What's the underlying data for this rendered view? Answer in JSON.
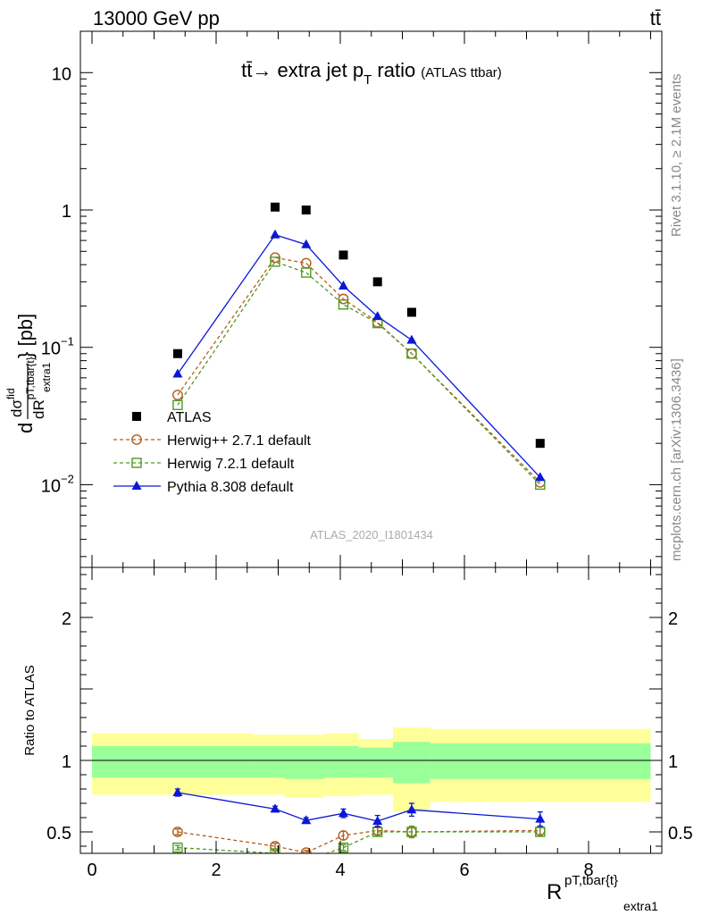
{
  "header": {
    "left": "13000 GeV pp",
    "right": "tt̄"
  },
  "side_text": {
    "rivet": "Rivet 3.1.10, ≥ 2.1M events",
    "mcplots": "mcplots.cern.ch [arXiv:1306.3436]"
  },
  "chart_data": [
    {
      "type": "line",
      "panel": "main",
      "title": "tt̄→ extra jet p",
      "title_sub": "T",
      "title_tail": " ratio",
      "title_note": "(ATLAS ttbar)",
      "analysis_label": "ATLAS_2020_I1801434",
      "ylabel_parts": {
        "d": "d",
        "num": "dσ",
        "num_sup": "fid",
        "den": "dR",
        "den_sup": "pT,tbar{t}",
        "den_sub": "extra1",
        "unit": "} [pb]"
      },
      "yscale": "log",
      "ylim": [
        0.0025,
        20
      ],
      "xlim": [
        -0.2,
        9.1
      ],
      "yticks": [
        {
          "v": 0.01,
          "base": "10",
          "exp": "−2"
        },
        {
          "v": 0.1,
          "base": "10",
          "exp": "−1"
        },
        {
          "v": 1,
          "base": "1",
          "exp": ""
        },
        {
          "v": 10,
          "base": "10",
          "exp": ""
        }
      ],
      "legend_position": "lower-left",
      "series": [
        {
          "name": "ATLAS",
          "color": "#000000",
          "marker": "square-filled",
          "line": "none",
          "x": [
            1.38,
            2.95,
            3.45,
            4.05,
            4.6,
            5.15,
            7.22
          ],
          "y": [
            0.09,
            1.05,
            1.0,
            0.47,
            0.3,
            0.18,
            0.02
          ]
        },
        {
          "name": "Herwig++ 2.7.1 default",
          "color": "#b05f1e",
          "marker": "circle-open",
          "line": "dashed",
          "x": [
            1.38,
            2.95,
            3.45,
            4.05,
            4.6,
            5.15,
            7.22
          ],
          "y": [
            0.045,
            0.45,
            0.41,
            0.225,
            0.152,
            0.09,
            0.0104
          ]
        },
        {
          "name": "Herwig 7.2.1 default",
          "color": "#4f9a21",
          "marker": "square-open",
          "line": "dashed",
          "x": [
            1.38,
            2.95,
            3.45,
            4.05,
            4.6,
            5.15,
            7.22
          ],
          "y": [
            0.038,
            0.42,
            0.35,
            0.205,
            0.15,
            0.09,
            0.01
          ]
        },
        {
          "name": "Pythia 8.308 default",
          "color": "#0a17d8",
          "marker": "triangle-filled",
          "line": "solid",
          "x": [
            1.38,
            2.95,
            3.45,
            4.05,
            4.6,
            5.15,
            7.22
          ],
          "y": [
            0.064,
            0.66,
            0.56,
            0.28,
            0.168,
            0.113,
            0.0113
          ]
        }
      ]
    },
    {
      "type": "line",
      "panel": "ratio",
      "ylabel": "Ratio to ATLAS",
      "xlabel_parts": {
        "base": "R",
        "sup": "pT,tbar{t}",
        "sub": "extra1"
      },
      "ylim": [
        0.35,
        2.35
      ],
      "xlim": [
        -0.2,
        9.1
      ],
      "xticks": [
        0,
        2,
        4,
        6,
        8
      ],
      "yticks": [
        0.5,
        1,
        2
      ],
      "bands": [
        {
          "x0": 0.0,
          "x1": 2.6,
          "yellow": [
            0.76,
            1.19
          ],
          "green": [
            0.88,
            1.1
          ]
        },
        {
          "x0": 2.6,
          "x1": 3.1,
          "yellow": [
            0.76,
            1.18
          ],
          "green": [
            0.88,
            1.1
          ]
        },
        {
          "x0": 3.1,
          "x1": 3.75,
          "yellow": [
            0.74,
            1.18
          ],
          "green": [
            0.87,
            1.1
          ]
        },
        {
          "x0": 3.75,
          "x1": 4.3,
          "yellow": [
            0.75,
            1.19
          ],
          "green": [
            0.88,
            1.1
          ]
        },
        {
          "x0": 4.3,
          "x1": 4.85,
          "yellow": [
            0.76,
            1.15
          ],
          "green": [
            0.88,
            1.09
          ]
        },
        {
          "x0": 4.85,
          "x1": 5.45,
          "yellow": [
            0.64,
            1.23
          ],
          "green": [
            0.84,
            1.13
          ]
        },
        {
          "x0": 5.45,
          "x1": 9.0,
          "yellow": [
            0.71,
            1.22
          ],
          "green": [
            0.87,
            1.12
          ]
        }
      ],
      "series": [
        {
          "name": "Herwig++ 2.7.1 default",
          "color": "#b05f1e",
          "marker": "circle-open",
          "line": "dashed",
          "x": [
            1.38,
            2.95,
            3.45,
            4.05,
            4.6,
            5.15,
            7.22
          ],
          "y": [
            0.5,
            0.4,
            0.355,
            0.475,
            0.51,
            0.5,
            0.51
          ],
          "err": [
            0.02,
            0.02,
            0.015,
            0.03,
            0.03,
            0.04,
            0.03
          ]
        },
        {
          "name": "Herwig 7.2.1 default",
          "color": "#4f9a21",
          "marker": "square-open",
          "line": "dashed",
          "x": [
            1.38,
            2.95,
            3.45,
            4.05,
            4.6,
            5.15,
            7.22
          ],
          "y": [
            0.39,
            0.35,
            0.3,
            0.39,
            0.5,
            0.5,
            0.5
          ],
          "err": [
            0.015,
            0.015,
            0.015,
            0.02,
            0.03,
            0.04,
            0.03
          ]
        },
        {
          "name": "Pythia 8.308 default",
          "color": "#0a17d8",
          "marker": "triangle-filled",
          "line": "solid",
          "x": [
            1.38,
            2.95,
            3.45,
            4.05,
            4.6,
            5.15,
            7.22
          ],
          "y": [
            0.775,
            0.66,
            0.58,
            0.63,
            0.575,
            0.655,
            0.59
          ],
          "err": [
            0.025,
            0.02,
            0.02,
            0.03,
            0.04,
            0.045,
            0.05
          ]
        }
      ]
    }
  ]
}
